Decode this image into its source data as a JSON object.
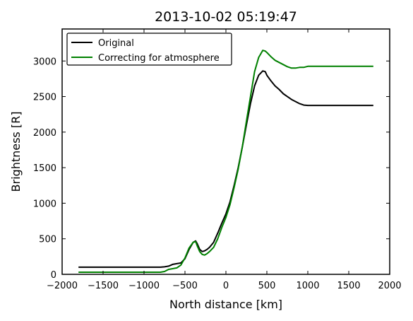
{
  "chart_data": {
    "type": "line",
    "title": "2013-10-02 05:19:47",
    "xlabel": "North distance [km]",
    "ylabel": "Brightness [R]",
    "xlim": [
      -2000,
      2000
    ],
    "ylim": [
      0,
      3450
    ],
    "xticks": [
      -2000,
      -1500,
      -1000,
      -500,
      0,
      500,
      1000,
      1500,
      2000
    ],
    "yticks": [
      0,
      500,
      1000,
      1500,
      2000,
      2500,
      3000
    ],
    "legend_position": "upper-left",
    "grid": false,
    "series": [
      {
        "name": "Original",
        "color": "#000000",
        "x": [
          -1800,
          -1500,
          -1200,
          -1000,
          -800,
          -750,
          -700,
          -650,
          -600,
          -550,
          -500,
          -450,
          -400,
          -370,
          -350,
          -320,
          -290,
          -260,
          -230,
          -200,
          -150,
          -100,
          -50,
          0,
          50,
          100,
          150,
          200,
          250,
          300,
          350,
          400,
          450,
          480,
          500,
          550,
          600,
          650,
          700,
          750,
          800,
          850,
          900,
          950,
          1000,
          1100,
          1200,
          1400,
          1600,
          1800
        ],
        "y": [
          100,
          100,
          100,
          100,
          100,
          105,
          115,
          140,
          150,
          160,
          220,
          350,
          450,
          470,
          430,
          350,
          320,
          330,
          350,
          380,
          450,
          580,
          720,
          850,
          1020,
          1250,
          1500,
          1790,
          2100,
          2400,
          2650,
          2800,
          2860,
          2850,
          2800,
          2720,
          2650,
          2600,
          2540,
          2500,
          2460,
          2430,
          2400,
          2380,
          2375,
          2375,
          2375,
          2375,
          2375,
          2375
        ]
      },
      {
        "name": "Correcting for atmosphere",
        "color": "#008000",
        "x": [
          -1800,
          -1500,
          -1200,
          -1000,
          -800,
          -750,
          -700,
          -650,
          -600,
          -550,
          -500,
          -450,
          -400,
          -370,
          -350,
          -320,
          -290,
          -260,
          -230,
          -200,
          -150,
          -100,
          -50,
          0,
          50,
          100,
          150,
          200,
          250,
          300,
          350,
          400,
          450,
          480,
          500,
          550,
          600,
          650,
          700,
          750,
          800,
          850,
          900,
          950,
          1000,
          1100,
          1200,
          1400,
          1600,
          1800
        ],
        "y": [
          30,
          30,
          30,
          30,
          30,
          40,
          70,
          80,
          90,
          130,
          230,
          370,
          450,
          460,
          400,
          320,
          280,
          270,
          290,
          320,
          380,
          500,
          660,
          800,
          980,
          1220,
          1480,
          1790,
          2150,
          2500,
          2850,
          3050,
          3150,
          3140,
          3120,
          3060,
          3010,
          2980,
          2950,
          2920,
          2900,
          2900,
          2910,
          2910,
          2925,
          2925,
          2925,
          2925,
          2925,
          2925
        ]
      }
    ]
  }
}
